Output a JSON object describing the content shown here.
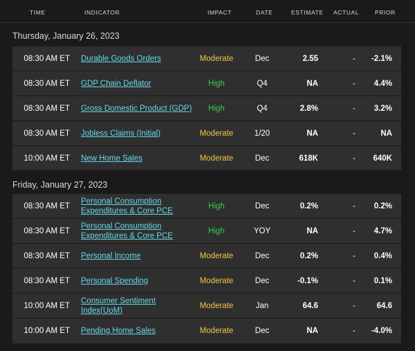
{
  "colors": {
    "background": "#1a1a1a",
    "row_background": "#2f2f2f",
    "link": "#67d8e6",
    "impact_moderate": "#f1c744",
    "impact_high": "#33d048"
  },
  "header": {
    "time": "TIME",
    "indicator": "INDICATOR",
    "impact": "IMPACT",
    "date": "DATE",
    "estimate": "ESTIMATE",
    "actual": "ACTUAL",
    "prior": "PRIOR"
  },
  "days": [
    {
      "label": "Thursday, January 26, 2023",
      "rows": [
        {
          "time": "08:30 AM ET",
          "indicator": "Durable Goods Orders",
          "impact": "Moderate",
          "date": "Dec",
          "estimate": "2.55",
          "actual": "-",
          "prior": "-2.1%"
        },
        {
          "time": "08:30 AM ET",
          "indicator": "GDP Chain Deflator",
          "impact": "High",
          "date": "Q4",
          "estimate": "NA",
          "actual": "-",
          "prior": "4.4%"
        },
        {
          "time": "08:30 AM ET",
          "indicator": "Gross Domestic Product (GDP)",
          "impact": "High",
          "date": "Q4",
          "estimate": "2.8%",
          "actual": "-",
          "prior": "3.2%"
        },
        {
          "time": "08:30 AM ET",
          "indicator": "Jobless Claims (Initial)",
          "impact": "Moderate",
          "date": "1/20",
          "estimate": "NA",
          "actual": "-",
          "prior": "NA"
        },
        {
          "time": "10:00 AM ET",
          "indicator": "New Home Sales",
          "impact": "Moderate",
          "date": "Dec",
          "estimate": "618K",
          "actual": "-",
          "prior": "640K"
        }
      ]
    },
    {
      "label": "Friday, January 27, 2023",
      "rows": [
        {
          "time": "08:30 AM ET",
          "indicator_lines": [
            "Personal Consumption",
            "Expenditures & Core PCE"
          ],
          "impact": "High",
          "date": "Dec",
          "estimate": "0.2%",
          "actual": "-",
          "prior": "0.2%"
        },
        {
          "time": "08:30 AM ET",
          "indicator_lines": [
            "Personal Consumption",
            "Expenditures & Core PCE"
          ],
          "impact": "High",
          "date": "YOY",
          "estimate": "NA",
          "actual": "-",
          "prior": "4.7%"
        },
        {
          "time": "08:30 AM ET",
          "indicator": "Personal Income",
          "impact": "Moderate",
          "date": "Dec",
          "estimate": "0.2%",
          "actual": "-",
          "prior": "0.4%"
        },
        {
          "time": "08:30 AM ET",
          "indicator": "Personal Spending",
          "impact": "Moderate",
          "date": "Dec",
          "estimate": "-0.1%",
          "actual": "-",
          "prior": "0.1%"
        },
        {
          "time": "10:00 AM ET",
          "indicator_lines": [
            "Consumer Sentiment",
            "Index(UoM)"
          ],
          "impact": "Moderate",
          "date": "Jan",
          "estimate": "64.6",
          "actual": "-",
          "prior": "64.6"
        },
        {
          "time": "10:00 AM ET",
          "indicator": "Pending Home Sales",
          "impact": "Moderate",
          "date": "Dec",
          "estimate": "NA",
          "actual": "-",
          "prior": "-4.0%"
        }
      ]
    }
  ]
}
